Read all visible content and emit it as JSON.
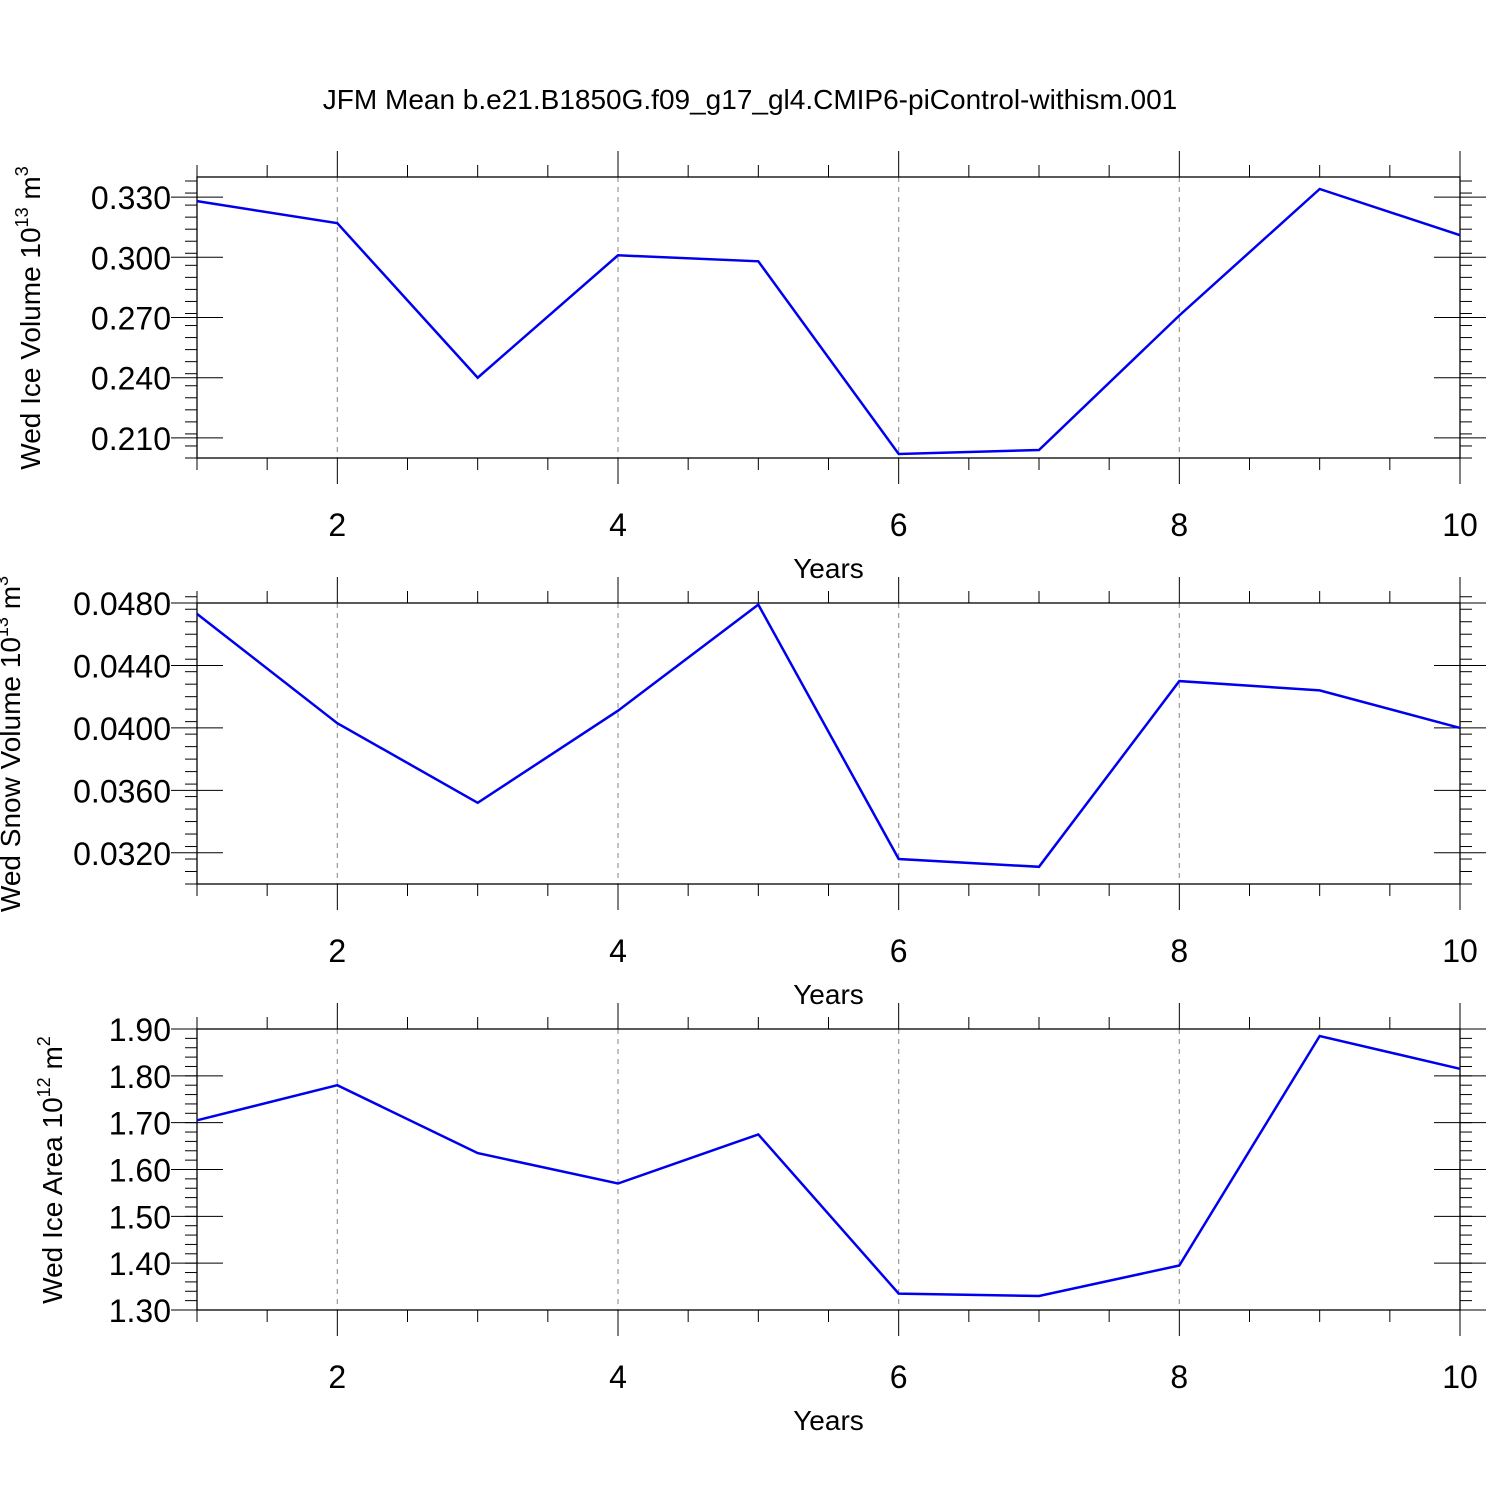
{
  "figure_title": "JFM Mean b.e21.B1850G.f09_g17_gl4.CMIP6-piControl-withism.001",
  "line_color": "#0000ee",
  "chart_data": [
    {
      "type": "line",
      "title": "",
      "xlabel": "Years",
      "ylabel": {
        "text": "Wed Ice Volume 10",
        "exponent": "13",
        "unit": "m",
        "unit_exponent": "3"
      },
      "xlim": [
        1,
        10
      ],
      "ylim": [
        0.2,
        0.34
      ],
      "xticks": [
        2,
        4,
        6,
        8,
        10
      ],
      "xtick_labels": [
        "2",
        "4",
        "6",
        "8",
        "10"
      ],
      "yticks": [
        0.21,
        0.24,
        0.27,
        0.3,
        0.33
      ],
      "ytick_labels": [
        "0.210",
        "0.240",
        "0.270",
        "0.300",
        "0.330"
      ],
      "y_minor_step": 0.006,
      "grid": "vertical dashed at major x ticks",
      "x": [
        1,
        2,
        3,
        4,
        5,
        6,
        7,
        8,
        9,
        10
      ],
      "series": [
        {
          "values": [
            0.328,
            0.317,
            0.24,
            0.301,
            0.298,
            0.202,
            0.204,
            0.271,
            0.334,
            0.311
          ]
        }
      ]
    },
    {
      "type": "line",
      "title": "",
      "xlabel": "Years",
      "ylabel": {
        "text": "Wed Snow Volume 10",
        "exponent": "13",
        "unit": "m",
        "unit_exponent": "3"
      },
      "xlim": [
        1,
        10
      ],
      "ylim": [
        0.03,
        0.048
      ],
      "xticks": [
        2,
        4,
        6,
        8,
        10
      ],
      "xtick_labels": [
        "2",
        "4",
        "6",
        "8",
        "10"
      ],
      "yticks": [
        0.032,
        0.036,
        0.04,
        0.044,
        0.048
      ],
      "ytick_labels": [
        "0.0320",
        "0.0360",
        "0.0400",
        "0.0440",
        "0.0480"
      ],
      "y_minor_step": 0.0008,
      "grid": "vertical dashed at major x ticks",
      "x": [
        1,
        2,
        3,
        4,
        5,
        6,
        7,
        8,
        9,
        10
      ],
      "series": [
        {
          "values": [
            0.0473,
            0.0403,
            0.0352,
            0.0411,
            0.0479,
            0.0316,
            0.0311,
            0.043,
            0.0424,
            0.04
          ]
        }
      ]
    },
    {
      "type": "line",
      "title": "",
      "xlabel": "Years",
      "ylabel": {
        "text": "Wed Ice Area 10",
        "exponent": "12",
        "unit": "m",
        "unit_exponent": "2"
      },
      "xlim": [
        1,
        10
      ],
      "ylim": [
        1.3,
        1.9
      ],
      "xticks": [
        2,
        4,
        6,
        8,
        10
      ],
      "xtick_labels": [
        "2",
        "4",
        "6",
        "8",
        "10"
      ],
      "yticks": [
        1.3,
        1.4,
        1.5,
        1.6,
        1.7,
        1.8,
        1.9
      ],
      "ytick_labels": [
        "1.30",
        "1.40",
        "1.50",
        "1.60",
        "1.70",
        "1.80",
        "1.90"
      ],
      "y_minor_step": 0.02,
      "grid": "vertical dashed at major x ticks",
      "x": [
        1,
        2,
        3,
        4,
        5,
        6,
        7,
        8,
        9,
        10
      ],
      "series": [
        {
          "values": [
            1.705,
            1.78,
            1.635,
            1.57,
            1.675,
            1.335,
            1.33,
            1.395,
            1.885,
            1.815
          ]
        }
      ]
    }
  ]
}
